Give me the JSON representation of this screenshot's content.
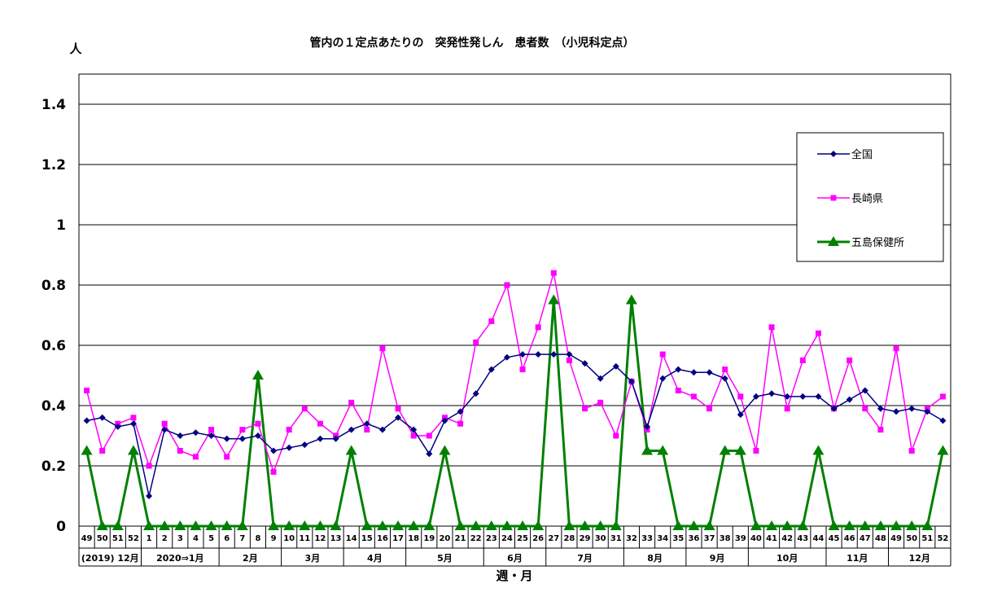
{
  "chart_data": {
    "type": "line",
    "title": "管内の１定点あたりの　突発性発しん　患者数　（小児科定点）",
    "ylabel": "人",
    "xlabel": "週・月",
    "ylim": [
      0,
      1.5
    ],
    "yticks": [
      "0",
      "0.2",
      "0.4",
      "0.6",
      "0.8",
      "1",
      "1.2",
      "1.4"
    ],
    "grid": true,
    "legend_position": "right",
    "categories": [
      "49",
      "50",
      "51",
      "52",
      "1",
      "2",
      "3",
      "4",
      "5",
      "6",
      "7",
      "8",
      "9",
      "10",
      "11",
      "12",
      "13",
      "14",
      "15",
      "16",
      "17",
      "18",
      "19",
      "20",
      "21",
      "22",
      "23",
      "24",
      "25",
      "26",
      "27",
      "28",
      "29",
      "30",
      "31",
      "32",
      "33",
      "34",
      "35",
      "36",
      "37",
      "38",
      "39",
      "40",
      "41",
      "42",
      "43",
      "44",
      "45",
      "46",
      "47",
      "48",
      "49",
      "50",
      "51",
      "52"
    ],
    "month_groups": [
      {
        "label": "(2019) 12月",
        "start": 0,
        "end": 3
      },
      {
        "label": "2020⇒1月",
        "start": 4,
        "end": 8
      },
      {
        "label": "2月",
        "start": 9,
        "end": 12
      },
      {
        "label": "3月",
        "start": 13,
        "end": 16
      },
      {
        "label": "4月",
        "start": 17,
        "end": 20
      },
      {
        "label": "5月",
        "start": 21,
        "end": 25
      },
      {
        "label": "6月",
        "start": 26,
        "end": 29
      },
      {
        "label": "7月",
        "start": 30,
        "end": 34
      },
      {
        "label": "8月",
        "start": 35,
        "end": 38
      },
      {
        "label": "9月",
        "start": 39,
        "end": 42
      },
      {
        "label": "10月",
        "start": 43,
        "end": 47
      },
      {
        "label": "11月",
        "start": 48,
        "end": 51
      },
      {
        "label": "12月",
        "start": 52,
        "end": 55
      }
    ],
    "series": [
      {
        "name": "全国",
        "color": "#000080",
        "marker": "diamond",
        "values": [
          0.35,
          0.36,
          0.33,
          0.34,
          0.1,
          0.32,
          0.3,
          0.31,
          0.3,
          0.29,
          0.29,
          0.3,
          0.25,
          0.26,
          0.27,
          0.29,
          0.29,
          0.32,
          0.34,
          0.32,
          0.36,
          0.32,
          0.24,
          0.35,
          0.38,
          0.44,
          0.52,
          0.56,
          0.57,
          0.57,
          0.57,
          0.57,
          0.54,
          0.49,
          0.53,
          0.48,
          0.33,
          0.49,
          0.52,
          0.51,
          0.51,
          0.49,
          0.37,
          0.43,
          0.44,
          0.43,
          0.43,
          0.43,
          0.39,
          0.42,
          0.45,
          0.39,
          0.38,
          0.39,
          0.38,
          0.35
        ]
      },
      {
        "name": "長崎県",
        "color": "#FF00FF",
        "marker": "square",
        "values": [
          0.45,
          0.25,
          0.34,
          0.36,
          0.2,
          0.34,
          0.25,
          0.23,
          0.32,
          0.23,
          0.32,
          0.34,
          0.18,
          0.32,
          0.39,
          0.34,
          0.3,
          0.41,
          0.32,
          0.59,
          0.39,
          0.3,
          0.3,
          0.36,
          0.34,
          0.61,
          0.68,
          0.8,
          0.52,
          0.66,
          0.84,
          0.55,
          0.39,
          0.41,
          0.3,
          0.48,
          0.32,
          0.57,
          0.45,
          0.43,
          0.39,
          0.52,
          0.43,
          0.25,
          0.66,
          0.39,
          0.55,
          0.64,
          0.39,
          0.55,
          0.39,
          0.32,
          0.59,
          0.25,
          0.39,
          0.43
        ]
      },
      {
        "name": "五島保健所",
        "color": "#008000",
        "marker": "triangle",
        "values": [
          0.25,
          0,
          0,
          0.25,
          0,
          0,
          0,
          0,
          0,
          0,
          0,
          0.5,
          0,
          0,
          0,
          0,
          0,
          0.25,
          0,
          0,
          0,
          0,
          0,
          0.25,
          0,
          0,
          0,
          0,
          0,
          0,
          0.75,
          0,
          0,
          0,
          0,
          0.75,
          0.25,
          0.25,
          0,
          0,
          0,
          0.25,
          0.25,
          0,
          0,
          0,
          0,
          0.25,
          0,
          0,
          0,
          0,
          0,
          0,
          0,
          0.25
        ]
      }
    ]
  }
}
